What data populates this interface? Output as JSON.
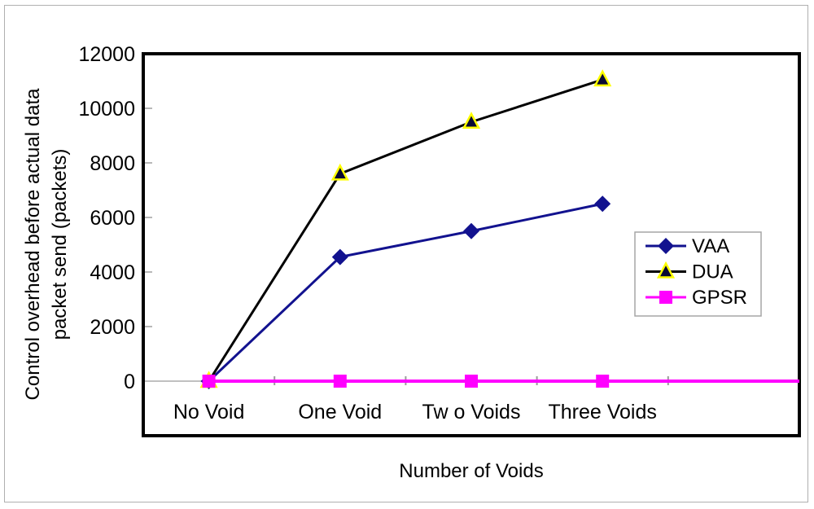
{
  "figure": {
    "background": "#ffffff",
    "border_color": "#b0b0b0"
  },
  "chart_data": {
    "type": "line",
    "title": "",
    "xlabel": "Number of Voids",
    "ylabel": "Control overhead before actual data packet send (packets)",
    "ylabel_lines": [
      "Control overhead before actual data",
      "packet send (packets)"
    ],
    "categories": [
      "No Void",
      "One Void",
      "Tw o Voids",
      "Three Voids"
    ],
    "y_ticks": [
      0,
      2000,
      4000,
      6000,
      8000,
      10000,
      12000
    ],
    "ylim": [
      0,
      12000
    ],
    "grid": "zero-line-only",
    "legend_position": "middle-right",
    "axis_colors": {
      "frame": "#000000",
      "gridline": "#c0c0c0",
      "tick": "#b8b8b8",
      "boundary_tick": "#9a9a9a"
    },
    "legend": {
      "fill": "#ffffff",
      "border": "#a6a6a6"
    },
    "series": [
      {
        "name": "VAA",
        "color": "#12128f",
        "line_width": 3,
        "marker": "diamond",
        "marker_color": "#12128f",
        "values": [
          0,
          4550,
          5500,
          6500
        ]
      },
      {
        "name": "DUA",
        "color": "#000000",
        "line_width": 3,
        "marker": "triangle",
        "marker_color": "#0a0a33",
        "marker_edge": "#ffff00",
        "values": [
          0,
          7600,
          9500,
          11050
        ]
      },
      {
        "name": "GPSR",
        "color": "#ff00ff",
        "line_width": 4,
        "marker": "square",
        "marker_color": "#ff00ff",
        "values": [
          0,
          0,
          0,
          0
        ],
        "line_extends_right": true
      }
    ]
  }
}
